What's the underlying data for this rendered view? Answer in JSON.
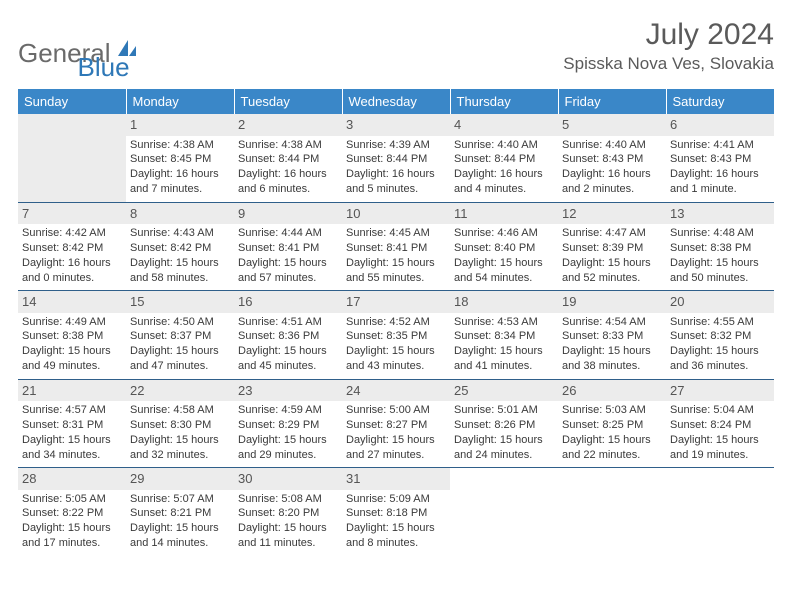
{
  "logo": {
    "general": "General",
    "blue": "Blue"
  },
  "title": "July 2024",
  "location": "Spisska Nova Ves, Slovakia",
  "colors": {
    "header_bg": "#3a87c8",
    "header_text": "#ffffff",
    "daynum_bg": "#ececec",
    "text": "#3a3a3a",
    "rule": "#2f5f8a"
  },
  "weekdays": [
    "Sunday",
    "Monday",
    "Tuesday",
    "Wednesday",
    "Thursday",
    "Friday",
    "Saturday"
  ],
  "weeks": [
    [
      null,
      {
        "n": "1",
        "sunrise": "Sunrise: 4:38 AM",
        "sunset": "Sunset: 8:45 PM",
        "day1": "Daylight: 16 hours",
        "day2": "and 7 minutes."
      },
      {
        "n": "2",
        "sunrise": "Sunrise: 4:38 AM",
        "sunset": "Sunset: 8:44 PM",
        "day1": "Daylight: 16 hours",
        "day2": "and 6 minutes."
      },
      {
        "n": "3",
        "sunrise": "Sunrise: 4:39 AM",
        "sunset": "Sunset: 8:44 PM",
        "day1": "Daylight: 16 hours",
        "day2": "and 5 minutes."
      },
      {
        "n": "4",
        "sunrise": "Sunrise: 4:40 AM",
        "sunset": "Sunset: 8:44 PM",
        "day1": "Daylight: 16 hours",
        "day2": "and 4 minutes."
      },
      {
        "n": "5",
        "sunrise": "Sunrise: 4:40 AM",
        "sunset": "Sunset: 8:43 PM",
        "day1": "Daylight: 16 hours",
        "day2": "and 2 minutes."
      },
      {
        "n": "6",
        "sunrise": "Sunrise: 4:41 AM",
        "sunset": "Sunset: 8:43 PM",
        "day1": "Daylight: 16 hours",
        "day2": "and 1 minute."
      }
    ],
    [
      {
        "n": "7",
        "sunrise": "Sunrise: 4:42 AM",
        "sunset": "Sunset: 8:42 PM",
        "day1": "Daylight: 16 hours",
        "day2": "and 0 minutes."
      },
      {
        "n": "8",
        "sunrise": "Sunrise: 4:43 AM",
        "sunset": "Sunset: 8:42 PM",
        "day1": "Daylight: 15 hours",
        "day2": "and 58 minutes."
      },
      {
        "n": "9",
        "sunrise": "Sunrise: 4:44 AM",
        "sunset": "Sunset: 8:41 PM",
        "day1": "Daylight: 15 hours",
        "day2": "and 57 minutes."
      },
      {
        "n": "10",
        "sunrise": "Sunrise: 4:45 AM",
        "sunset": "Sunset: 8:41 PM",
        "day1": "Daylight: 15 hours",
        "day2": "and 55 minutes."
      },
      {
        "n": "11",
        "sunrise": "Sunrise: 4:46 AM",
        "sunset": "Sunset: 8:40 PM",
        "day1": "Daylight: 15 hours",
        "day2": "and 54 minutes."
      },
      {
        "n": "12",
        "sunrise": "Sunrise: 4:47 AM",
        "sunset": "Sunset: 8:39 PM",
        "day1": "Daylight: 15 hours",
        "day2": "and 52 minutes."
      },
      {
        "n": "13",
        "sunrise": "Sunrise: 4:48 AM",
        "sunset": "Sunset: 8:38 PM",
        "day1": "Daylight: 15 hours",
        "day2": "and 50 minutes."
      }
    ],
    [
      {
        "n": "14",
        "sunrise": "Sunrise: 4:49 AM",
        "sunset": "Sunset: 8:38 PM",
        "day1": "Daylight: 15 hours",
        "day2": "and 49 minutes."
      },
      {
        "n": "15",
        "sunrise": "Sunrise: 4:50 AM",
        "sunset": "Sunset: 8:37 PM",
        "day1": "Daylight: 15 hours",
        "day2": "and 47 minutes."
      },
      {
        "n": "16",
        "sunrise": "Sunrise: 4:51 AM",
        "sunset": "Sunset: 8:36 PM",
        "day1": "Daylight: 15 hours",
        "day2": "and 45 minutes."
      },
      {
        "n": "17",
        "sunrise": "Sunrise: 4:52 AM",
        "sunset": "Sunset: 8:35 PM",
        "day1": "Daylight: 15 hours",
        "day2": "and 43 minutes."
      },
      {
        "n": "18",
        "sunrise": "Sunrise: 4:53 AM",
        "sunset": "Sunset: 8:34 PM",
        "day1": "Daylight: 15 hours",
        "day2": "and 41 minutes."
      },
      {
        "n": "19",
        "sunrise": "Sunrise: 4:54 AM",
        "sunset": "Sunset: 8:33 PM",
        "day1": "Daylight: 15 hours",
        "day2": "and 38 minutes."
      },
      {
        "n": "20",
        "sunrise": "Sunrise: 4:55 AM",
        "sunset": "Sunset: 8:32 PM",
        "day1": "Daylight: 15 hours",
        "day2": "and 36 minutes."
      }
    ],
    [
      {
        "n": "21",
        "sunrise": "Sunrise: 4:57 AM",
        "sunset": "Sunset: 8:31 PM",
        "day1": "Daylight: 15 hours",
        "day2": "and 34 minutes."
      },
      {
        "n": "22",
        "sunrise": "Sunrise: 4:58 AM",
        "sunset": "Sunset: 8:30 PM",
        "day1": "Daylight: 15 hours",
        "day2": "and 32 minutes."
      },
      {
        "n": "23",
        "sunrise": "Sunrise: 4:59 AM",
        "sunset": "Sunset: 8:29 PM",
        "day1": "Daylight: 15 hours",
        "day2": "and 29 minutes."
      },
      {
        "n": "24",
        "sunrise": "Sunrise: 5:00 AM",
        "sunset": "Sunset: 8:27 PM",
        "day1": "Daylight: 15 hours",
        "day2": "and 27 minutes."
      },
      {
        "n": "25",
        "sunrise": "Sunrise: 5:01 AM",
        "sunset": "Sunset: 8:26 PM",
        "day1": "Daylight: 15 hours",
        "day2": "and 24 minutes."
      },
      {
        "n": "26",
        "sunrise": "Sunrise: 5:03 AM",
        "sunset": "Sunset: 8:25 PM",
        "day1": "Daylight: 15 hours",
        "day2": "and 22 minutes."
      },
      {
        "n": "27",
        "sunrise": "Sunrise: 5:04 AM",
        "sunset": "Sunset: 8:24 PM",
        "day1": "Daylight: 15 hours",
        "day2": "and 19 minutes."
      }
    ],
    [
      {
        "n": "28",
        "sunrise": "Sunrise: 5:05 AM",
        "sunset": "Sunset: 8:22 PM",
        "day1": "Daylight: 15 hours",
        "day2": "and 17 minutes."
      },
      {
        "n": "29",
        "sunrise": "Sunrise: 5:07 AM",
        "sunset": "Sunset: 8:21 PM",
        "day1": "Daylight: 15 hours",
        "day2": "and 14 minutes."
      },
      {
        "n": "30",
        "sunrise": "Sunrise: 5:08 AM",
        "sunset": "Sunset: 8:20 PM",
        "day1": "Daylight: 15 hours",
        "day2": "and 11 minutes."
      },
      {
        "n": "31",
        "sunrise": "Sunrise: 5:09 AM",
        "sunset": "Sunset: 8:18 PM",
        "day1": "Daylight: 15 hours",
        "day2": "and 8 minutes."
      },
      null,
      null,
      null
    ]
  ]
}
